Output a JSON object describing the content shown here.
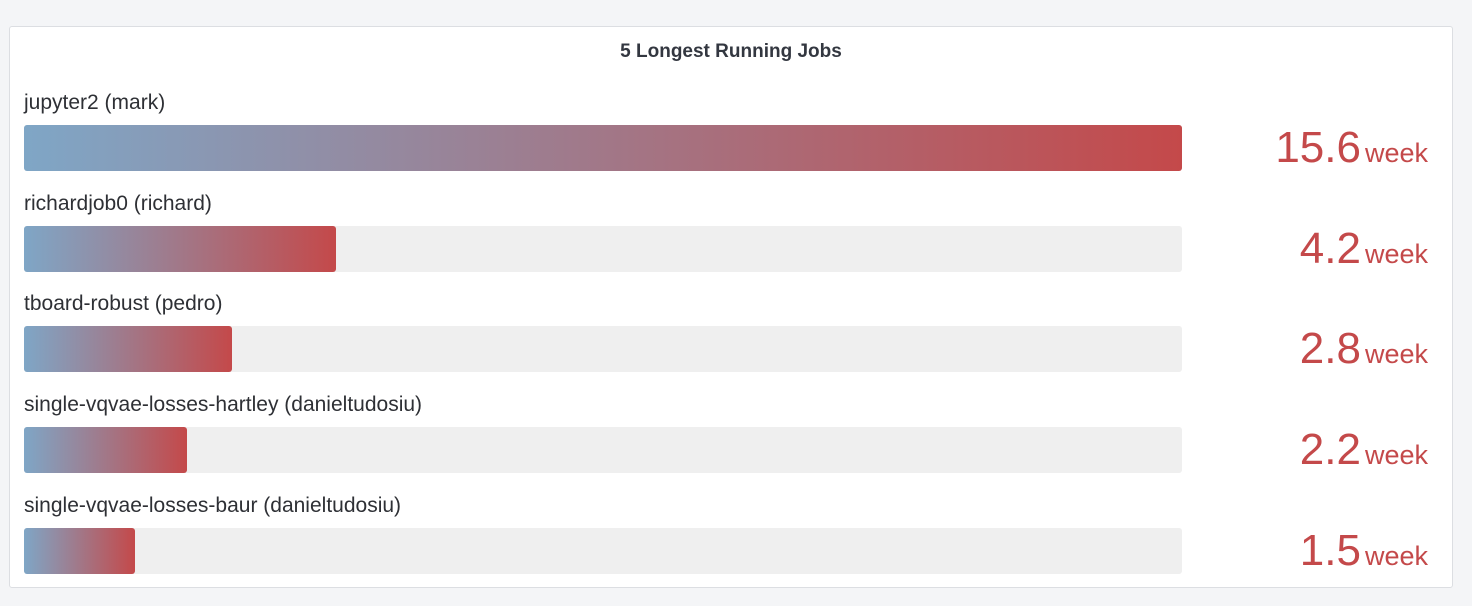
{
  "panel": {
    "title": "5 Longest Running Jobs"
  },
  "colors": {
    "gradient_start": "#7fa6c6",
    "gradient_end": "#c4494a",
    "track": "#efefef",
    "value_text": "#c4494a"
  },
  "chart_data": {
    "type": "bar",
    "orientation": "horizontal",
    "title": "5 Longest Running Jobs",
    "unit": "week",
    "max": 15.6,
    "categories": [
      "jupyter2 (mark)",
      "richardjob0 (richard)",
      "tboard-robust (pedro)",
      "single-vqvae-losses-hartley (danieltudosiu)",
      "single-vqvae-losses-baur (danieltudosiu)"
    ],
    "values": [
      15.6,
      4.2,
      2.8,
      2.2,
      1.5
    ],
    "value_labels": [
      "15.6",
      "4.2",
      "2.8",
      "2.2",
      "1.5"
    ]
  }
}
